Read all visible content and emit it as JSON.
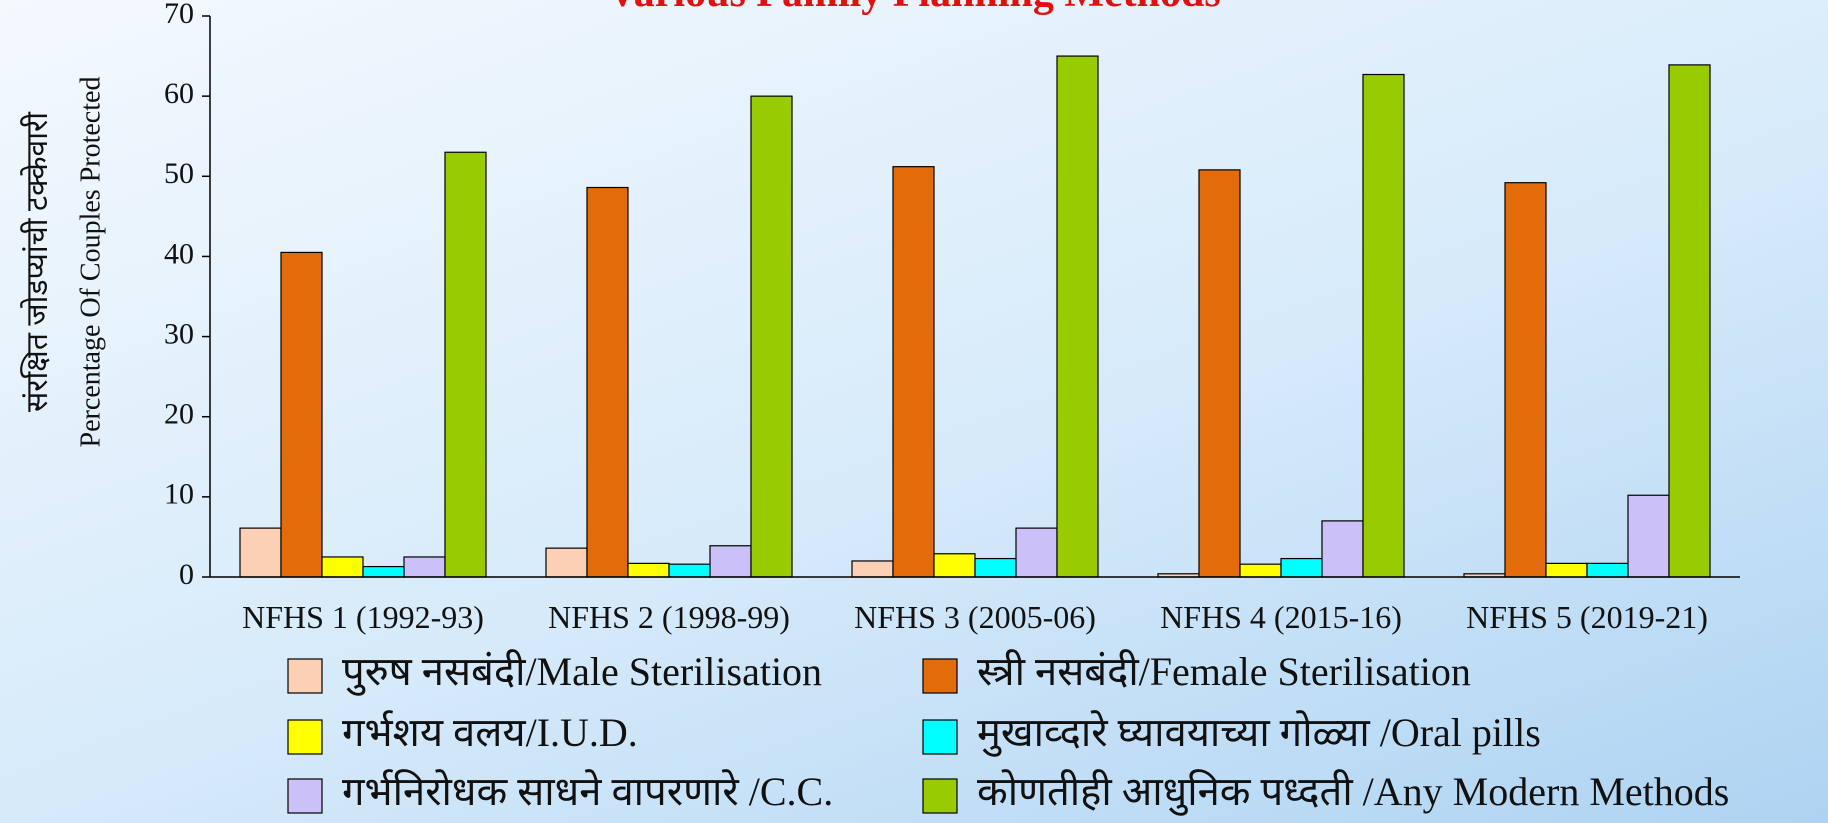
{
  "chart_data": {
    "type": "bar",
    "title": "Various Family Planning Methods",
    "y_label_marathi": "संरक्षित जोडप्यांची टक्केवारी",
    "y_label": "Percentage Of Couples Protected",
    "categories": [
      "NFHS 1 (1992-93)",
      "NFHS 2 (1998-99)",
      "NFHS 3 (2005-06)",
      "NFHS 4 (2015-16)",
      "NFHS 5 (2019-21)"
    ],
    "series": [
      {
        "name": "पुरुष नसबंदी/Male Sterilisation",
        "color": "#fcd0b4",
        "values": [
          6.1,
          3.6,
          2.0,
          0.4,
          0.4
        ]
      },
      {
        "name": "स्त्री नसबंदी/Female Sterilisation",
        "color": "#e36c0a",
        "values": [
          40.5,
          48.6,
          51.2,
          50.8,
          49.2
        ]
      },
      {
        "name": "गर्भशय वलय/I.U.D.",
        "color": "#ffff00",
        "values": [
          2.5,
          1.7,
          2.9,
          1.6,
          1.7
        ]
      },
      {
        "name": "मुखाव्दारे घ्यावयाच्या गोळ्या /Oral pills",
        "color": "#00ffff",
        "values": [
          1.3,
          1.6,
          2.3,
          2.3,
          1.7
        ]
      },
      {
        "name": "गर्भनिरोधक साधने वापरणारे /C.C.",
        "color": "#ccc0f8",
        "values": [
          2.5,
          3.9,
          6.1,
          7.0,
          10.2
        ]
      },
      {
        "name": "कोणतीही आधुनिक पध्दती /Any Modern Methods",
        "color": "#99cc00",
        "values": [
          53,
          60,
          65,
          62.7,
          63.9
        ]
      }
    ],
    "ylim": [
      0,
      70
    ],
    "yticks": [
      0,
      10,
      20,
      30,
      40,
      50,
      60,
      70
    ]
  }
}
